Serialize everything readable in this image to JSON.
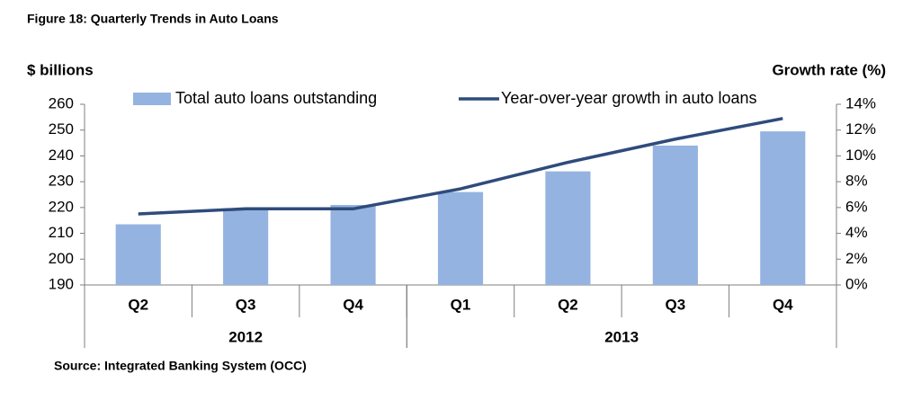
{
  "chart_data": {
    "type": "bar-line",
    "title": "Figure 18: Quarterly Trends in Auto Loans",
    "y_label": "$ billions",
    "y2_label": "Growth rate (%)",
    "source": "Source: Integrated Banking System (OCC)",
    "categories": [
      "Q2",
      "Q3",
      "Q4",
      "Q1",
      "Q2",
      "Q3",
      "Q4"
    ],
    "groups": [
      {
        "label": "2012",
        "span": 3
      },
      {
        "label": "2013",
        "span": 4
      }
    ],
    "series": [
      {
        "name": "Total auto loans outstanding",
        "type": "bar",
        "color": "#95b3e0",
        "values": [
          213.5,
          219.5,
          221,
          226,
          234,
          244,
          249.5
        ]
      },
      {
        "name": "Year-over-year growth in auto loans",
        "type": "line",
        "axis": "y2",
        "color": "#2f4b7c",
        "values": [
          5.5,
          5.9,
          5.9,
          7.45,
          9.5,
          11.3,
          12.9
        ]
      }
    ],
    "ylim": [
      190,
      260
    ],
    "yticks": [
      190,
      200,
      210,
      220,
      230,
      240,
      250,
      260
    ],
    "y2lim": [
      0,
      14
    ],
    "y2ticks": [
      {
        "value": 0,
        "label": "0%"
      },
      {
        "value": 2,
        "label": "2%"
      },
      {
        "value": 4,
        "label": "4%"
      },
      {
        "value": 6,
        "label": "6%"
      },
      {
        "value": 8,
        "label": "8%"
      },
      {
        "value": 10,
        "label": "10%"
      },
      {
        "value": 12,
        "label": "12%"
      },
      {
        "value": 14,
        "label": "14%"
      }
    ],
    "grid": false
  }
}
